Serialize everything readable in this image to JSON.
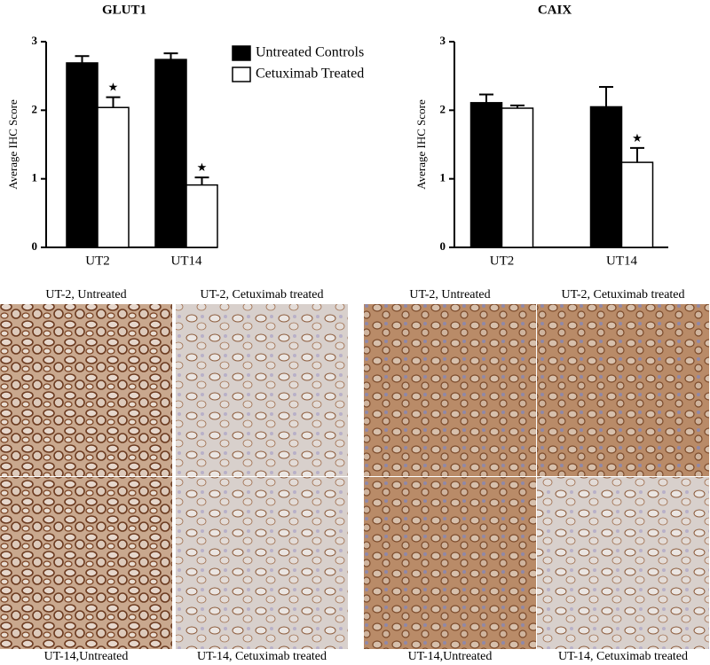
{
  "chart_data": [
    {
      "type": "bar",
      "title": "GLUT1",
      "y_label": "Average IHC Score",
      "categories": [
        "UT2",
        "UT14"
      ],
      "series": [
        {
          "name": "Untreated Controls",
          "color": "#000000",
          "values": [
            2.69,
            2.74
          ],
          "errors": [
            0.1,
            0.09
          ]
        },
        {
          "name": "Cetuximab Treated",
          "color": "#ffffff",
          "values": [
            2.04,
            0.91
          ],
          "errors": [
            0.15,
            0.11
          ]
        }
      ],
      "annotations": [
        "★",
        "★"
      ],
      "ylim": [
        0,
        3
      ],
      "yticks": [
        0,
        1,
        2,
        3
      ],
      "legend": "upper right"
    },
    {
      "type": "bar",
      "title": "CAIX",
      "y_label": "Average IHC Score",
      "categories": [
        "UT2",
        "UT14"
      ],
      "series": [
        {
          "color": "#000000",
          "values": [
            2.11,
            2.05
          ],
          "errors": [
            0.12,
            0.29
          ]
        },
        {
          "color": "#ffffff",
          "values": [
            2.03,
            1.24
          ],
          "errors": [
            0.04,
            0.21
          ]
        }
      ],
      "annotations": [
        null,
        "★"
      ],
      "ylim": [
        0,
        3
      ],
      "yticks": [
        0,
        1,
        2,
        3
      ]
    }
  ],
  "images": [
    {
      "caption": "UT-2, Untreated"
    },
    {
      "caption": "UT-2, Cetuximab treated"
    },
    {
      "caption": "UT-14,Untreated"
    },
    {
      "caption": "UT-14, Cetuximab treated"
    },
    {
      "caption": "UT-2, Untreated"
    },
    {
      "caption": "UT-2, Cetuximab treated"
    },
    {
      "caption": "UT-14,Untreated"
    },
    {
      "caption": "UT-14, Cetuximab treated"
    }
  ]
}
